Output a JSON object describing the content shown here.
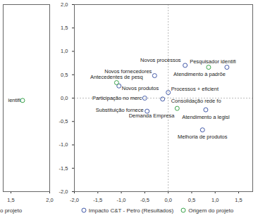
{
  "chart_data": [
    {
      "type": "scatter",
      "xlim": [
        1.4,
        2.0
      ],
      "xticks": [
        {
          "value": 1.5,
          "label": "1,5"
        },
        {
          "value": 2.0,
          "label": "2,0"
        }
      ],
      "ylim": [
        -2.0,
        2.0
      ],
      "tick_labels": "x",
      "legend": "bottom",
      "series": [
        {
          "name": "o projeto",
          "color": "#3aa34a",
          "marker": "circle",
          "x": [
            1.65
          ],
          "values": [
            -0.05
          ],
          "labels": [
            "ientifi"
          ]
        }
      ]
    },
    {
      "type": "scatter",
      "xlim": [
        -2.0,
        1.8
      ],
      "xticks": [
        {
          "value": -2.0,
          "label": "-2,0"
        },
        {
          "value": -1.5,
          "label": "-1,5"
        },
        {
          "value": -1.0,
          "label": "-1,0"
        },
        {
          "value": -0.5,
          "label": "-0,5"
        },
        {
          "value": 0,
          "label": "0,0"
        },
        {
          "value": 0.5,
          "label": "0,5"
        },
        {
          "value": 1.0,
          "label": "1,0"
        },
        {
          "value": 1.5,
          "label": "1,5"
        }
      ],
      "ylim": [
        -2.0,
        2.0
      ],
      "yticks": [
        {
          "value": -2.0,
          "label": "-2,0"
        },
        {
          "value": -1.5,
          "label": "-1,5"
        },
        {
          "value": -1.0,
          "label": "-1,0"
        },
        {
          "value": -0.5,
          "label": "-0,5"
        },
        {
          "value": 0,
          "label": "0,0"
        },
        {
          "value": 0.5,
          "label": "0,5"
        },
        {
          "value": 1.0,
          "label": "1,0"
        },
        {
          "value": 1.5,
          "label": "1,5"
        },
        {
          "value": 2.0,
          "label": "2,0"
        }
      ],
      "reference_lines": {
        "x": 0,
        "y": 0
      },
      "legend": "bottom",
      "series": [
        {
          "name": "Impacto C&T - Petro (Resultados)",
          "color": "#4259a8",
          "marker": "circle",
          "x": [
            0.36,
            1.25,
            -0.29,
            -1.05,
            -0.5,
            -0.45,
            0.0,
            -0.12,
            0.8,
            0.73
          ],
          "values": [
            0.7,
            0.66,
            0.48,
            0.26,
            0.0,
            -0.28,
            0.12,
            -0.02,
            -0.25,
            -0.68
          ],
          "labels": [
            "Novos processos",
            "Atendimento à padrõe",
            "Novos fornecedores",
            "Novos produtos",
            "Participação no merc",
            "Substituição fornece",
            "Processos + eficient",
            "Consolidação rede fo",
            "Atendimento a legisl",
            "Melhoria de produtos"
          ]
        },
        {
          "name": "Origem do projeto",
          "color": "#3aa34a",
          "marker": "circle",
          "x": [
            -1.1,
            0.86,
            0.19
          ],
          "values": [
            0.33,
            0.66,
            -0.22
          ],
          "labels": [
            "Antecedentes de pesq",
            "Pesquisador identifi",
            "Demanda Empresa"
          ]
        }
      ]
    }
  ]
}
